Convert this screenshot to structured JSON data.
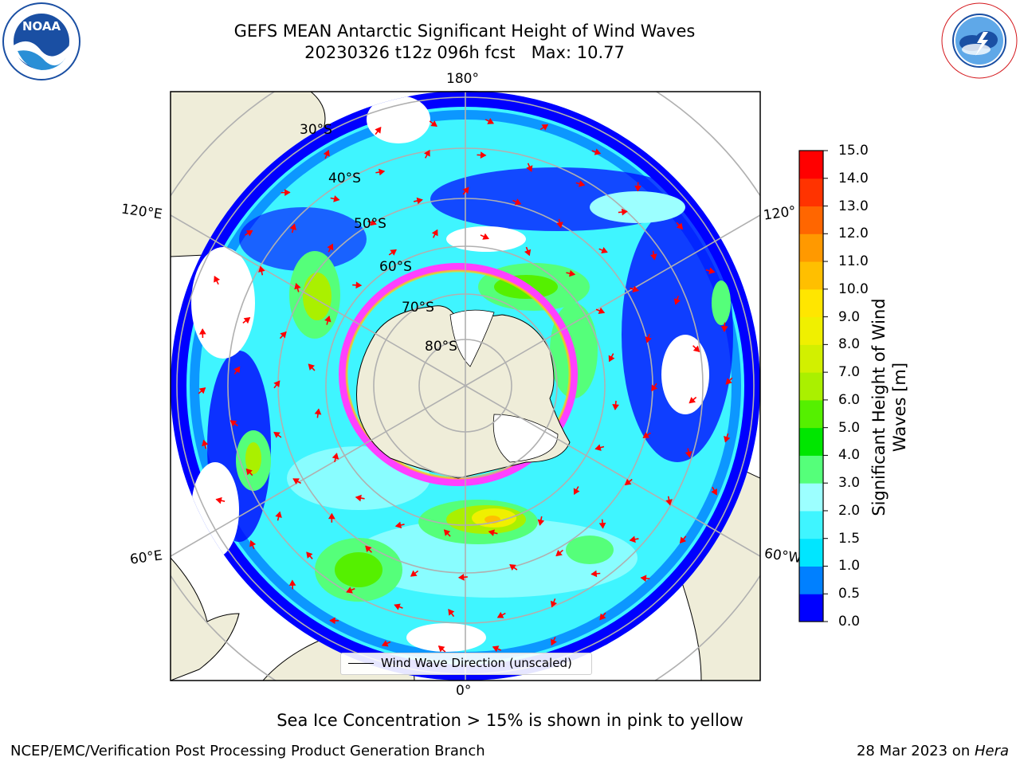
{
  "header": {
    "title_line1": "GEFS MEAN Antarctic Significant Height of Wind Waves",
    "title_line2": "20230326 t12z 096h fcst   Max: 10.77"
  },
  "logos": {
    "left": "NOAA",
    "right": "NATIONAL WEATHER SERVICE",
    "left_color": "#1a4fa3",
    "right_color": "#d4161b"
  },
  "map": {
    "longitude_labels": {
      "top": "180°",
      "bottom": "0°",
      "left_upper": "120°E",
      "left_lower": "60°E",
      "right_upper": "120°",
      "right_lower": "60°W"
    },
    "latitude_labels": [
      "30°S",
      "40°S",
      "50°S",
      "60°S",
      "70°S",
      "80°S"
    ],
    "legend_text": "Wind Wave Direction (unscaled)",
    "arrow_color": "#ff0000",
    "land_color": "#efedd9"
  },
  "colorbar": {
    "label_line1": "Significant Height of Wind",
    "label_line2": "Waves [m]",
    "ticks": [
      "0.0",
      "0.5",
      "1.0",
      "1.5",
      "2.0",
      "3.0",
      "4.0",
      "5.0",
      "6.0",
      "7.0",
      "8.0",
      "9.0",
      "10.0",
      "11.0",
      "12.0",
      "13.0",
      "14.0",
      "15.0"
    ],
    "colors": [
      "#0000ff",
      "#0080ff",
      "#00e6ff",
      "#3ff5ff",
      "#9cffff",
      "#55ff7a",
      "#00e600",
      "#55f000",
      "#aaf000",
      "#d2f000",
      "#f0f000",
      "#ffe600",
      "#ffbf00",
      "#ff9900",
      "#ff6600",
      "#ff3300",
      "#ff0000"
    ]
  },
  "ice_note": "Sea Ice Concentration > 15% is shown in pink to yellow",
  "footer": {
    "left": "NCEP/EMC/Verification Post Processing Product Generation Branch",
    "right_date": "28 Mar 2023 on ",
    "right_machine": "Hera"
  }
}
